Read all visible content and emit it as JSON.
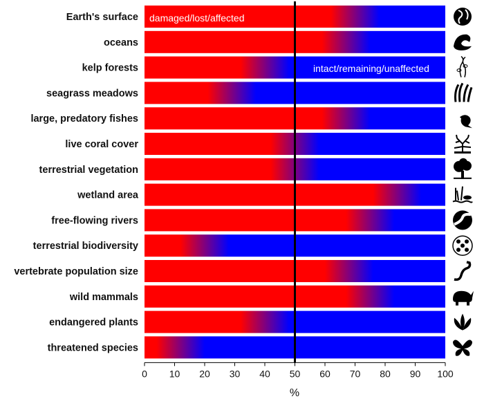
{
  "chart_data": {
    "type": "bar",
    "orientation": "horizontal",
    "stacked": true,
    "xlabel": "%",
    "xlim": [
      0,
      100
    ],
    "xticks": [
      "0",
      "10",
      "20",
      "30",
      "40",
      "50",
      "60",
      "70",
      "80",
      "90",
      "100"
    ],
    "reference_line_x": 50,
    "grid": false,
    "colors": {
      "damaged": "#ff0000",
      "intact": "#0000ff",
      "line": "#000000"
    },
    "annotations": {
      "damaged": "damaged/lost/affected",
      "intact": "intact/remaining/unaffected"
    },
    "categories": [
      {
        "label": "Earth's surface",
        "icon": "globe-icon",
        "damaged_low": 62,
        "damaged_high": 78
      },
      {
        "label": "oceans",
        "icon": "wave-icon",
        "damaged_low": 59,
        "damaged_high": 75
      },
      {
        "label": "kelp forests",
        "icon": "kelp-icon",
        "damaged_low": 32,
        "damaged_high": 48
      },
      {
        "label": "seagrass meadows",
        "icon": "seagrass-icon",
        "damaged_low": 21,
        "damaged_high": 37
      },
      {
        "label": "large, predatory fishes",
        "icon": "marlin-icon",
        "damaged_low": 59,
        "damaged_high": 75
      },
      {
        "label": "live coral cover",
        "icon": "coral-icon",
        "damaged_low": 42,
        "damaged_high": 58
      },
      {
        "label": "terrestrial vegetation",
        "icon": "tree-icon",
        "damaged_low": 42,
        "damaged_high": 58
      },
      {
        "label": "wetland area",
        "icon": "wetland-icon",
        "damaged_low": 76,
        "damaged_high": 92
      },
      {
        "label": "free-flowing rivers",
        "icon": "river-icon",
        "damaged_low": 67,
        "damaged_high": 83
      },
      {
        "label": "terrestrial biodiversity",
        "icon": "biodiversity-icon",
        "damaged_low": 12,
        "damaged_high": 28
      },
      {
        "label": "vertebrate population size",
        "icon": "snake-icon",
        "damaged_low": 60,
        "damaged_high": 76
      },
      {
        "label": "wild mammals",
        "icon": "rhino-icon",
        "damaged_low": 67,
        "damaged_high": 83
      },
      {
        "label": "endangered plants",
        "icon": "lotus-icon",
        "damaged_low": 32,
        "damaged_high": 48
      },
      {
        "label": "threatened species",
        "icon": "butterfly-icon",
        "damaged_low": 4,
        "damaged_high": 20
      }
    ]
  }
}
